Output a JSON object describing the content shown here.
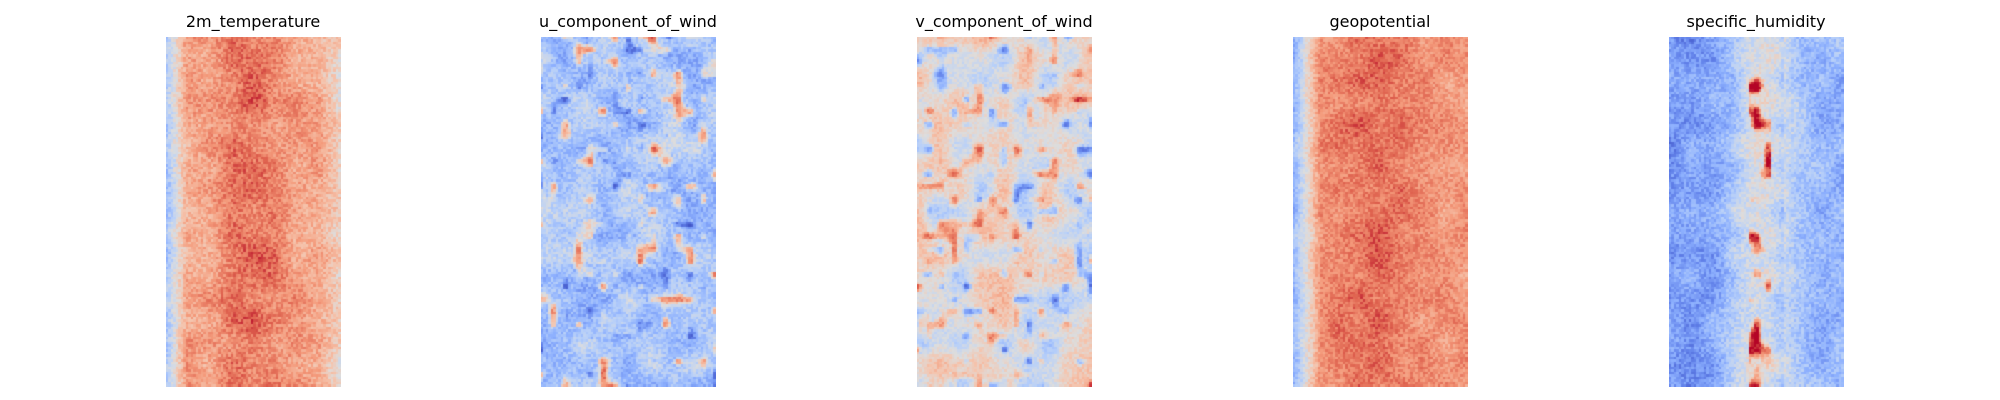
{
  "figure": {
    "panels": [
      {
        "title": "2m_temperature"
      },
      {
        "title": "u_component_of_wind"
      },
      {
        "title": "v_component_of_wind"
      },
      {
        "title": "geopotential"
      },
      {
        "title": "specific_humidity"
      }
    ]
  },
  "chart_data": [
    {
      "type": "heatmap",
      "title": "2m_temperature",
      "colormap": "coolwarm",
      "axes": "off",
      "grid": false,
      "dominant_colors": [
        "#f7a889",
        "#dd5f4b",
        "#b40426",
        "#aac7fd",
        "#3b4cc0"
      ]
    },
    {
      "type": "heatmap",
      "title": "u_component_of_wind",
      "colormap": "coolwarm",
      "axes": "off",
      "grid": false,
      "dominant_colors": [
        "#b3cdfb",
        "#6b8df0",
        "#3b4cc0",
        "#dddcdc",
        "#e7745b",
        "#b40426"
      ]
    },
    {
      "type": "heatmap",
      "title": "v_component_of_wind",
      "colormap": "coolwarm",
      "axes": "off",
      "grid": false,
      "dominant_colors": [
        "#d5d5d5",
        "#b3cdfb",
        "#3b4cc0",
        "#f5c4ac",
        "#dd5f4b"
      ]
    },
    {
      "type": "heatmap",
      "title": "geopotential",
      "colormap": "coolwarm",
      "axes": "off",
      "grid": false,
      "dominant_colors": [
        "#f39577",
        "#e7745b",
        "#b40426",
        "#aac7fd",
        "#3b4cc0"
      ]
    },
    {
      "type": "heatmap",
      "title": "specific_humidity",
      "colormap": "coolwarm",
      "axes": "off",
      "grid": false,
      "dominant_colors": [
        "#9abbff",
        "#6282ea",
        "#3b4cc0",
        "#dddcdc",
        "#e7745b"
      ]
    }
  ]
}
